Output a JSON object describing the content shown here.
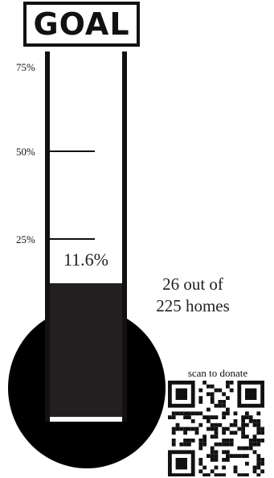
{
  "header": {
    "title": "GOAL"
  },
  "scale": {
    "ticks": [
      "75%",
      "50%",
      "25%"
    ]
  },
  "progress": {
    "percent_label": "11.6%",
    "count_label_line1": "26 out of",
    "count_label_line2": "225 homes",
    "fraction": 0.116
  },
  "donate": {
    "label": "scan to donate",
    "qr_icon": "qr-code-icon"
  },
  "colors": {
    "fill": "#231f20",
    "bulb": "#000000",
    "outline": "#111111"
  }
}
